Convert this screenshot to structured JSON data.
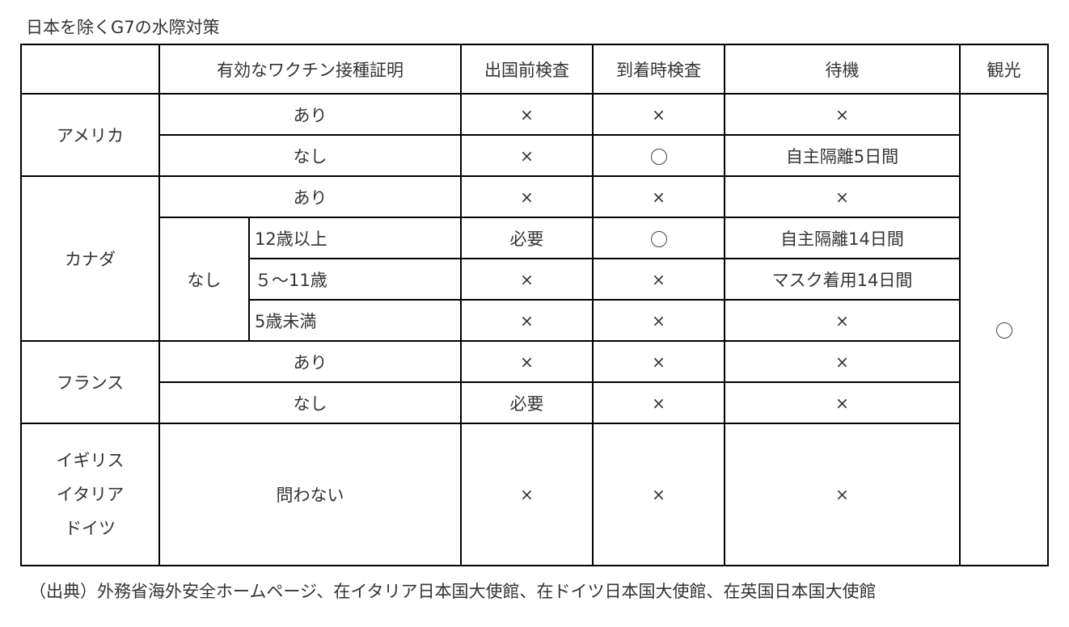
{
  "title": "日本を除くG7の水際対策",
  "headers": {
    "vaccine": "有効なワクチン接種証明",
    "pre_departure": "出国前検査",
    "arrival": "到着時検査",
    "wait": "待機",
    "tourism": "観光"
  },
  "marks": {
    "none": "×",
    "yes": "○",
    "required": "必要"
  },
  "tourism_value": "○",
  "rows": {
    "usa": {
      "country": "アメリカ",
      "yes": {
        "vaccine": "あり",
        "pre": "×",
        "arrival": "×",
        "wait": "×"
      },
      "no": {
        "vaccine": "なし",
        "pre": "×",
        "arrival": "○",
        "wait": "自主隔離5日間"
      }
    },
    "canada": {
      "country": "カナダ",
      "yes": {
        "vaccine": "あり",
        "pre": "×",
        "arrival": "×",
        "wait": "×"
      },
      "no_label": "なし",
      "age12": {
        "age": "12歳以上",
        "pre": "必要",
        "arrival": "○",
        "wait": "自主隔離14日間"
      },
      "age5_11": {
        "age": "５～11歳",
        "pre": "×",
        "arrival": "×",
        "wait": "マスク着用14日間"
      },
      "under5": {
        "age": "5歳未満",
        "pre": "×",
        "arrival": "×",
        "wait": "×"
      }
    },
    "france": {
      "country": "フランス",
      "yes": {
        "vaccine": "あり",
        "pre": "×",
        "arrival": "×",
        "wait": "×"
      },
      "no": {
        "vaccine": "なし",
        "pre": "必要",
        "arrival": "×",
        "wait": "×"
      }
    },
    "others": {
      "countries": [
        "イギリス",
        "イタリア",
        "ドイツ"
      ],
      "vaccine": "問わない",
      "pre": "×",
      "arrival": "×",
      "wait": "×"
    }
  },
  "footnote": "（出典）外務省海外安全ホームページ、在イタリア日本国大使館、在ドイツ日本国大使館、在英国日本国大使館"
}
